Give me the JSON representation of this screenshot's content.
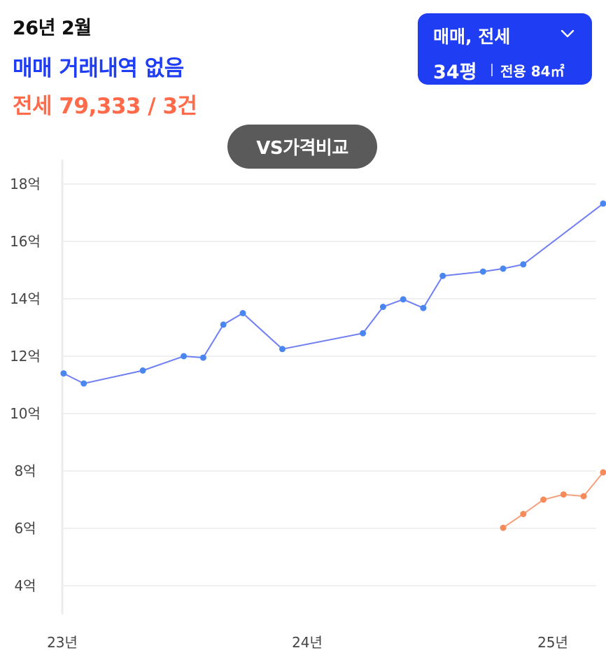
{
  "header": {
    "date": "26년 2월",
    "sale_status": "매매 거래내역 없음",
    "jeonse_summary": "전세 79,333 / 3건"
  },
  "selector": {
    "label": "매매, 전세",
    "pyeong": "34평",
    "area": "전용 84㎡",
    "chevron_icon": "chevron-down-icon"
  },
  "compare_button": {
    "label": "VS가격비교"
  },
  "colors": {
    "sale": "#6f7ff2",
    "sale_point": "#4a86f0",
    "jeonse": "#f5a07c",
    "jeonse_point": "#f58a5a",
    "accent": "#1f3df2"
  },
  "chart_data": {
    "type": "line",
    "y_unit": "억",
    "ylim": [
      3,
      18.5
    ],
    "y_ticks": [
      4,
      6,
      8,
      10,
      12,
      14,
      16,
      18
    ],
    "y_tick_labels": [
      "4억",
      "6억",
      "8억",
      "10억",
      "12억",
      "14억",
      "16억",
      "18억"
    ],
    "x_ticks": [
      "2023-01",
      "2024-01",
      "2025-01"
    ],
    "x_tick_labels": [
      "23년",
      "24년",
      "25년"
    ],
    "grid": true,
    "series": [
      {
        "key": "sale",
        "points": [
          {
            "x": "2023-01-03",
            "y": 11.4
          },
          {
            "x": "2023-02-02",
            "y": 11.05
          },
          {
            "x": "2023-05-01",
            "y": 11.5
          },
          {
            "x": "2023-07-01",
            "y": 12.0
          },
          {
            "x": "2023-07-30",
            "y": 11.95
          },
          {
            "x": "2023-08-29",
            "y": 13.1
          },
          {
            "x": "2023-09-27",
            "y": 13.5
          },
          {
            "x": "2023-11-25",
            "y": 12.25
          },
          {
            "x": "2024-03-24",
            "y": 12.8
          },
          {
            "x": "2024-04-23",
            "y": 13.72
          },
          {
            "x": "2024-05-23",
            "y": 13.98
          },
          {
            "x": "2024-06-22",
            "y": 13.68
          },
          {
            "x": "2024-07-21",
            "y": 14.8
          },
          {
            "x": "2024-09-19",
            "y": 14.95
          },
          {
            "x": "2024-10-19",
            "y": 15.05
          },
          {
            "x": "2024-11-18",
            "y": 15.2
          },
          {
            "x": "2025-03-17",
            "y": 17.32
          }
        ]
      },
      {
        "key": "jeonse",
        "points": [
          {
            "x": "2024-10-19",
            "y": 6.02
          },
          {
            "x": "2024-11-18",
            "y": 6.5
          },
          {
            "x": "2024-12-18",
            "y": 7.0
          },
          {
            "x": "2025-01-17",
            "y": 7.18
          },
          {
            "x": "2025-02-16",
            "y": 7.12
          },
          {
            "x": "2025-03-17",
            "y": 7.95
          }
        ]
      }
    ]
  }
}
